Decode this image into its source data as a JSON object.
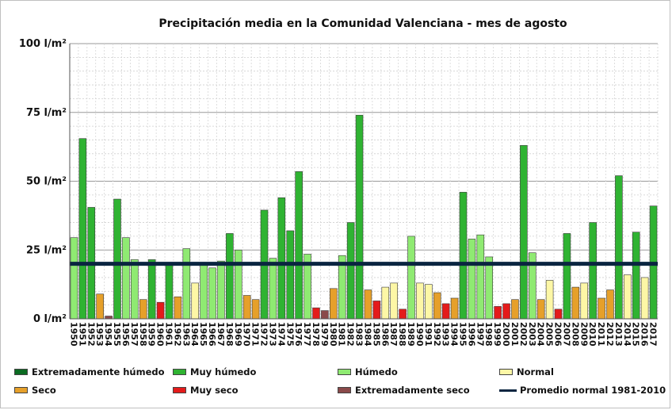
{
  "chart_data": {
    "type": "bar",
    "title": "Precipitación media en la Comunidad Valenciana - mes de agosto",
    "xlabel": "",
    "ylabel": "",
    "ylim": [
      0,
      100
    ],
    "y_ticks": [
      "0 l/m²",
      "25 l/m²",
      "50 l/m²",
      "75 l/m²",
      "100 l/m²"
    ],
    "grid": true,
    "categories": [
      "1950",
      "1951",
      "1952",
      "1953",
      "1954",
      "1955",
      "1956",
      "1957",
      "1958",
      "1959",
      "1960",
      "1961",
      "1962",
      "1963",
      "1964",
      "1965",
      "1966",
      "1967",
      "1968",
      "1969",
      "1970",
      "1971",
      "1972",
      "1973",
      "1974",
      "1975",
      "1976",
      "1977",
      "1978",
      "1979",
      "1980",
      "1981",
      "1982",
      "1983",
      "1984",
      "1985",
      "1986",
      "1987",
      "1988",
      "1989",
      "1990",
      "1991",
      "1992",
      "1993",
      "1994",
      "1995",
      "1996",
      "1997",
      "1998",
      "1999",
      "2000",
      "2001",
      "2002",
      "2003",
      "2004",
      "2005",
      "2006",
      "2007",
      "2008",
      "2009",
      "2010",
      "2011",
      "2012",
      "2013",
      "2014",
      "2015",
      "2016",
      "2017"
    ],
    "values": [
      29.5,
      65.5,
      40.5,
      9,
      1,
      43.5,
      29.5,
      21.5,
      7,
      21.5,
      6,
      20,
      8,
      25.5,
      13,
      20,
      18.5,
      21,
      31,
      25,
      8.5,
      7,
      39.5,
      22,
      44,
      32,
      53.5,
      23.5,
      4,
      3,
      11,
      23,
      35,
      74,
      10.5,
      6.5,
      11.5,
      13,
      3.5,
      30,
      13,
      12.5,
      9.5,
      5.5,
      7.5,
      46,
      29,
      30.5,
      22.5,
      4.5,
      5.5,
      7,
      63,
      24,
      7,
      14,
      3.5,
      31,
      11.5,
      13,
      35,
      7.5,
      10.5,
      52,
      16,
      31.5,
      15,
      41
    ],
    "classes": [
      "humedo",
      "muy_humedo",
      "muy_humedo",
      "seco",
      "ext_seco",
      "muy_humedo",
      "humedo",
      "humedo",
      "seco",
      "muy_humedo",
      "muy_seco",
      "muy_humedo",
      "seco",
      "humedo",
      "normal",
      "humedo",
      "humedo",
      "humedo",
      "muy_humedo",
      "humedo",
      "seco",
      "seco",
      "muy_humedo",
      "humedo",
      "muy_humedo",
      "muy_humedo",
      "muy_humedo",
      "humedo",
      "muy_seco",
      "ext_seco",
      "seco",
      "humedo",
      "muy_humedo",
      "muy_humedo",
      "seco",
      "muy_seco",
      "normal",
      "normal",
      "muy_seco",
      "humedo",
      "normal",
      "normal",
      "seco",
      "muy_seco",
      "seco",
      "muy_humedo",
      "humedo",
      "humedo",
      "humedo",
      "muy_seco",
      "muy_seco",
      "seco",
      "muy_humedo",
      "humedo",
      "seco",
      "normal",
      "muy_seco",
      "muy_humedo",
      "seco",
      "normal",
      "muy_humedo",
      "seco",
      "seco",
      "muy_humedo",
      "normal",
      "muy_humedo",
      "normal",
      "muy_humedo"
    ],
    "reference_line": {
      "name": "Promedio normal 1981-2010",
      "value": 20,
      "color": "#0a2540"
    },
    "colors": {
      "ext_humedo": "#0b6b22",
      "muy_humedo": "#2fb332",
      "humedo": "#8fea72",
      "normal": "#fdf7a6",
      "seco": "#e6a02a",
      "muy_seco": "#e41b1b",
      "ext_seco": "#8a4a4a"
    },
    "legend": {
      "placement": "bottom",
      "items": [
        {
          "key": "ext_humedo",
          "label": "Extremadamente húmedo"
        },
        {
          "key": "muy_humedo",
          "label": "Muy húmedo"
        },
        {
          "key": "humedo",
          "label": "Húmedo"
        },
        {
          "key": "normal",
          "label": "Normal"
        },
        {
          "key": "seco",
          "label": "Seco"
        },
        {
          "key": "muy_seco",
          "label": "Muy seco"
        },
        {
          "key": "ext_seco",
          "label": "Extremadamente seco"
        },
        {
          "key": "line",
          "label": "Promedio normal 1981-2010"
        }
      ]
    }
  }
}
